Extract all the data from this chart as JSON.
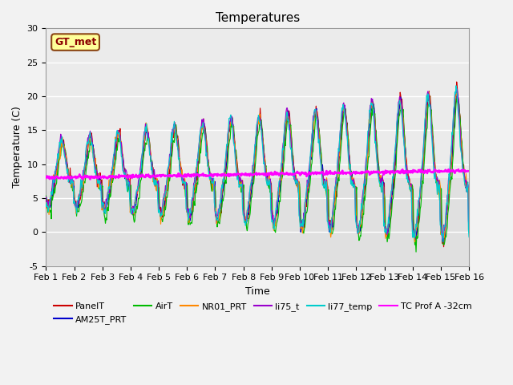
{
  "title": "Temperatures",
  "xlabel": "Time",
  "ylabel": "Temperature (C)",
  "ylim": [
    -5,
    30
  ],
  "xlim": [
    0,
    15
  ],
  "x_tick_labels": [
    "Feb 1",
    "Feb 2",
    "Feb 3",
    "Feb 4",
    "Feb 5",
    "Feb 6",
    "Feb 7",
    "Feb 8",
    "Feb 9",
    "Feb 10",
    "Feb 11",
    "Feb 12",
    "Feb 13",
    "Feb 14",
    "Feb 15",
    "Feb 16"
  ],
  "gt_met_label": "GT_met",
  "gt_met_box_facecolor": "#ffff99",
  "gt_met_box_edgecolor": "#8B4513",
  "gt_met_text_color": "#8B0000",
  "series_colors": {
    "PanelT": "#cc0000",
    "AM25T_PRT": "#0000cc",
    "AirT": "#00bb00",
    "NR01_PRT": "#ff8800",
    "li75_t": "#9900cc",
    "li77_temp": "#00cccc",
    "TC Prof A -32cm": "#ff00ff"
  },
  "background_color": "#e0e0e0",
  "background_color_upper": "#ebebeb",
  "grid_color": "#ffffff",
  "title_fontsize": 11,
  "axis_label_fontsize": 9,
  "tick_fontsize": 8,
  "legend_fontsize": 8,
  "figsize": [
    6.4,
    4.8
  ],
  "dpi": 100
}
